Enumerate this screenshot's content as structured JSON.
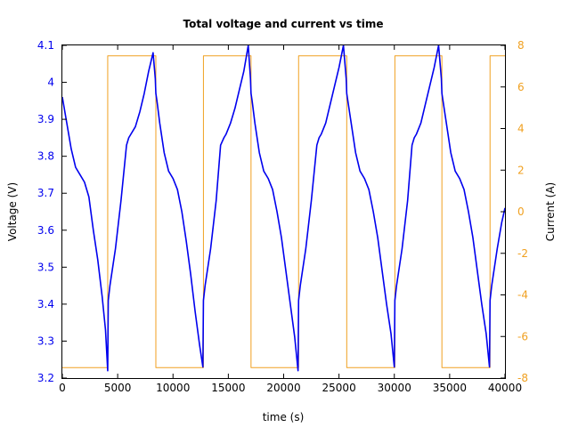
{
  "colors": {
    "voltage": "#0000ee",
    "current": "#f0a020",
    "axis": "#000000"
  },
  "chart_data": {
    "type": "line",
    "title": "Total voltage and current vs time",
    "xlabel": "time (s)",
    "ylabel": "Voltage (V)",
    "y2label": "Current (A)",
    "xlim": [
      0,
      40000
    ],
    "ylim": [
      3.2,
      4.1
    ],
    "y2lim": [
      -8,
      8
    ],
    "xticks": [
      0,
      5000,
      10000,
      15000,
      20000,
      25000,
      30000,
      35000,
      40000
    ],
    "xtick_labels": [
      "0",
      "5000",
      "10000",
      "15000",
      "20000",
      "25000",
      "30000",
      "35000",
      "40000"
    ],
    "yticks": [
      3.2,
      3.3,
      3.4,
      3.5,
      3.6,
      3.7,
      3.8,
      3.9,
      4.0,
      4.1
    ],
    "ytick_labels": [
      "3.2",
      "3.3",
      "3.4",
      "3.5",
      "3.6",
      "3.7",
      "3.8",
      "3.9",
      "4",
      "4.1"
    ],
    "y2ticks": [
      -8,
      -6,
      -4,
      -2,
      0,
      2,
      4,
      6,
      8
    ],
    "y2tick_labels": [
      "-8",
      "-6",
      "-4",
      "-2",
      "0",
      "2",
      "4",
      "6",
      "8"
    ],
    "grid": false,
    "series": [
      {
        "axis": "left",
        "color": "#0000ee",
        "x": [
          0,
          400,
          800,
          1200,
          1600,
          2000,
          2400,
          2800,
          3200,
          3600,
          3900,
          4100,
          4150,
          4300,
          4800,
          5300,
          5800,
          6000,
          6200,
          6600,
          7000,
          7400,
          7800,
          8200,
          8400,
          8450,
          8550,
          8800,
          9200,
          9600,
          10000,
          10400,
          10800,
          11200,
          11600,
          12000,
          12400,
          12700,
          12750,
          12900,
          13400,
          13900,
          14300,
          14600,
          14800,
          15200,
          15600,
          16000,
          16400,
          16800,
          17000,
          17050,
          17150,
          17400,
          17800,
          18200,
          18600,
          19000,
          19400,
          19800,
          20200,
          20600,
          21000,
          21300,
          21350,
          21500,
          22000,
          22500,
          23000,
          23200,
          23400,
          23800,
          24200,
          24600,
          25000,
          25400,
          25650,
          25700,
          25800,
          26100,
          26500,
          26900,
          27300,
          27700,
          28100,
          28500,
          28900,
          29300,
          29700,
          30000,
          30050,
          30200,
          30700,
          31200,
          31600,
          31800,
          32000,
          32400,
          32800,
          33200,
          33600,
          34000,
          34250,
          34300,
          34400,
          34700,
          35100,
          35500,
          35900,
          36300,
          36700,
          37100,
          37500,
          37900,
          38300,
          38600,
          38650,
          38800,
          39300,
          39700,
          40000
        ],
        "y": [
          3.96,
          3.89,
          3.82,
          3.77,
          3.75,
          3.73,
          3.69,
          3.6,
          3.52,
          3.42,
          3.33,
          3.22,
          3.41,
          3.45,
          3.55,
          3.68,
          3.83,
          3.85,
          3.86,
          3.88,
          3.92,
          3.97,
          4.03,
          4.08,
          4.01,
          3.97,
          3.95,
          3.89,
          3.81,
          3.76,
          3.74,
          3.71,
          3.65,
          3.57,
          3.48,
          3.38,
          3.29,
          3.23,
          3.41,
          3.45,
          3.55,
          3.68,
          3.83,
          3.85,
          3.86,
          3.89,
          3.93,
          3.98,
          4.03,
          4.1,
          4.01,
          3.97,
          3.95,
          3.89,
          3.81,
          3.76,
          3.74,
          3.71,
          3.65,
          3.58,
          3.49,
          3.4,
          3.31,
          3.22,
          3.41,
          3.45,
          3.55,
          3.68,
          3.83,
          3.85,
          3.86,
          3.89,
          3.94,
          3.99,
          4.04,
          4.1,
          4.01,
          3.97,
          3.95,
          3.89,
          3.81,
          3.76,
          3.74,
          3.71,
          3.65,
          3.58,
          3.49,
          3.4,
          3.32,
          3.23,
          3.41,
          3.45,
          3.55,
          3.68,
          3.83,
          3.85,
          3.86,
          3.89,
          3.94,
          3.99,
          4.04,
          4.1,
          4.01,
          3.97,
          3.95,
          3.89,
          3.81,
          3.76,
          3.74,
          3.71,
          3.65,
          3.58,
          3.49,
          3.4,
          3.32,
          3.23,
          3.41,
          3.45,
          3.55,
          3.62,
          3.66
        ]
      },
      {
        "axis": "right",
        "color": "#f0a020",
        "x": [
          0,
          4100,
          4100,
          8450,
          8450,
          12750,
          12750,
          17050,
          17050,
          21350,
          21350,
          25700,
          25700,
          30050,
          30050,
          34300,
          34300,
          38650,
          38650,
          40000
        ],
        "y": [
          -7.5,
          -7.5,
          7.5,
          7.5,
          -7.5,
          -7.5,
          7.5,
          7.5,
          -7.5,
          -7.5,
          7.5,
          7.5,
          -7.5,
          -7.5,
          7.5,
          7.5,
          -7.5,
          -7.5,
          7.5,
          7.5
        ]
      }
    ]
  }
}
